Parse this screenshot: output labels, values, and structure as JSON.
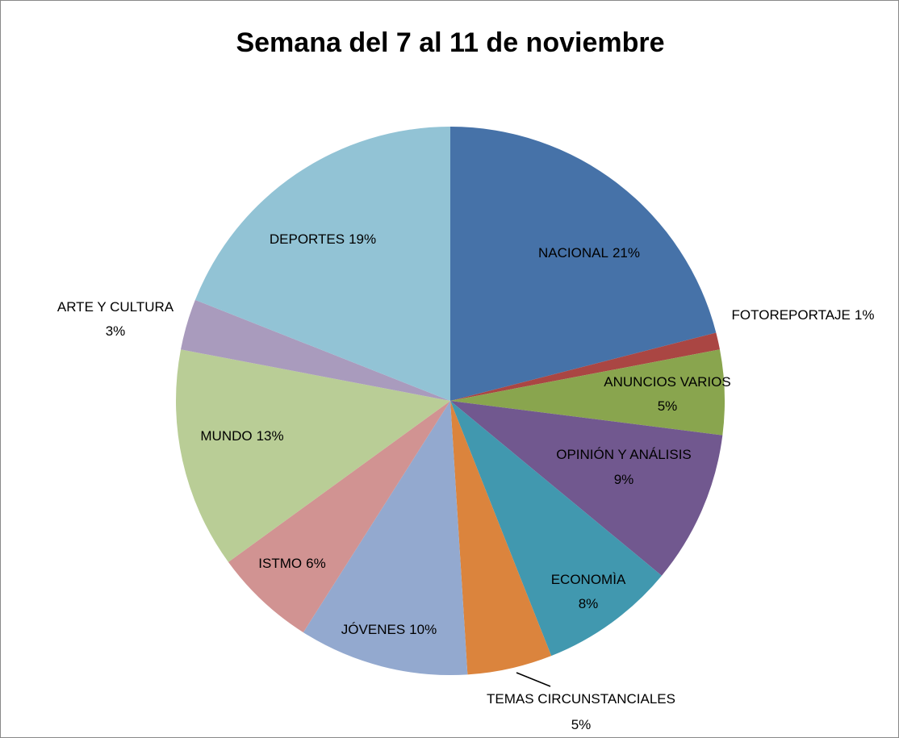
{
  "chart_data": {
    "type": "pie",
    "title": "Semana del 7 al 11 de noviembre",
    "categories": [
      "NACIONAL",
      "FOTOREPORTAJE",
      "ANUNCIOS VARIOS",
      "OPINIÓN Y ANÁLISIS",
      "ECONOMÌA",
      "TEMAS CIRCUNSTANCIALES",
      "JÓVENES",
      "ISTMO",
      "MUNDO",
      "ARTE Y CULTURA",
      "DEPORTES"
    ],
    "values": [
      21,
      1,
      5,
      9,
      8,
      5,
      10,
      6,
      13,
      3,
      19
    ],
    "value_labels": [
      "21%",
      "1%",
      "5%",
      "9%",
      "8%",
      "5%",
      "10%",
      "6%",
      "13%",
      "3%",
      "19%"
    ],
    "colors": [
      "#4672a8",
      "#aa4643",
      "#89a54e",
      "#71588f",
      "#4198af",
      "#db843d",
      "#93a9cf",
      "#d19392",
      "#b9cd96",
      "#a99bbd",
      "#92c3d5"
    ]
  }
}
